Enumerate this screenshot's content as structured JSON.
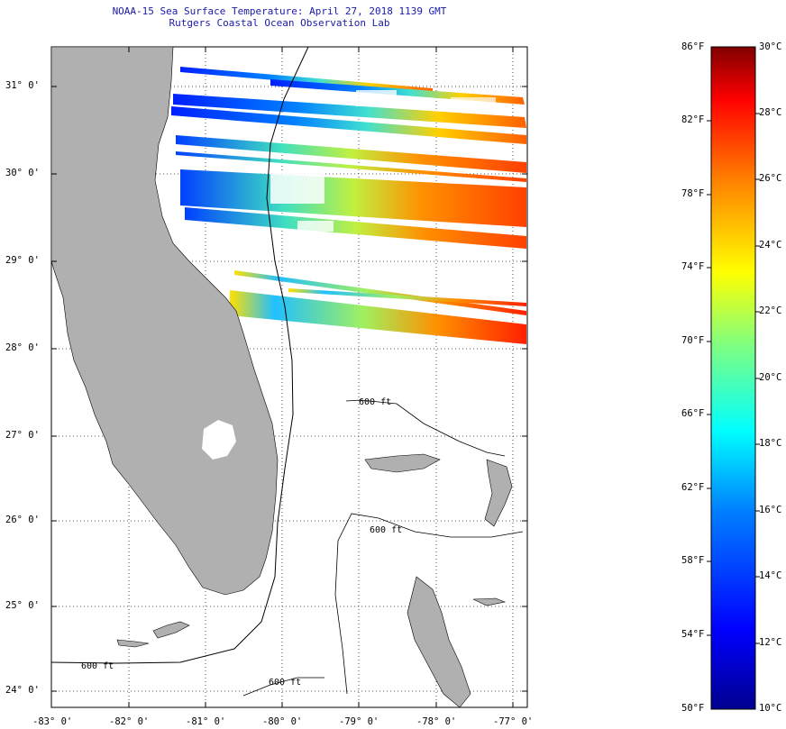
{
  "header": {
    "title": "NOAA-15 Sea Surface Temperature:  April 27, 2018 1139 GMT",
    "subtitle": "Rutgers Coastal Ocean Observation Lab"
  },
  "map": {
    "lat_labels": [
      "31° 0'",
      "30° 0'",
      "29° 0'",
      "28° 0'",
      "27° 0'",
      "26° 0'",
      "25° 0'",
      "24° 0'"
    ],
    "lon_labels": [
      "-83° 0'",
      "-82° 0'",
      "-81° 0'",
      "-80° 0'",
      "-79° 0'",
      "-78° 0'",
      "-77° 0'"
    ],
    "contour_label": "600 ft",
    "contour_label_alt": "600 ft",
    "colors": {
      "land": "#b0b0b0",
      "frame": "#000000",
      "grid": "#555555"
    }
  },
  "colorbar": {
    "f_labels": [
      "86°F",
      "82°F",
      "78°F",
      "74°F",
      "70°F",
      "66°F",
      "62°F",
      "58°F",
      "54°F",
      "50°F"
    ],
    "c_labels": [
      "30°C",
      "28°C",
      "26°C",
      "24°C",
      "22°C",
      "20°C",
      "18°C",
      "16°C",
      "14°C",
      "12°C",
      "10°C"
    ],
    "colors": [
      "#00008f",
      "#0000ff",
      "#0080ff",
      "#00ffff",
      "#80ff80",
      "#ffff00",
      "#ff8000",
      "#ff0000",
      "#800000"
    ]
  }
}
